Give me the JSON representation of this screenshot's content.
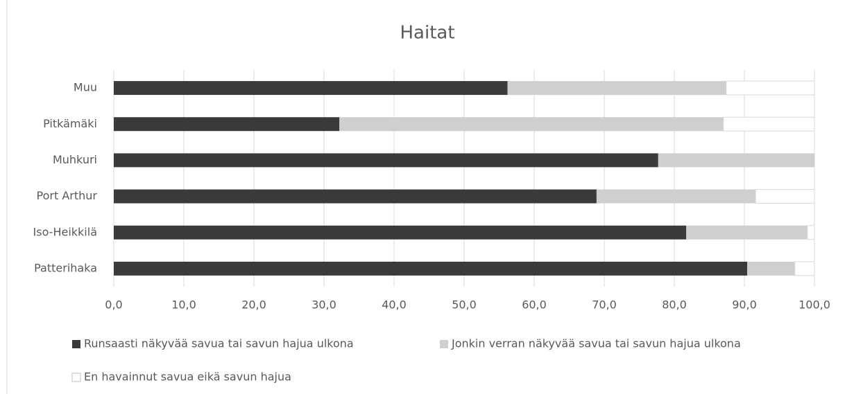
{
  "chart_data": {
    "type": "stacked-bar-horizontal",
    "title": "Haitat",
    "categories": [
      "Muu",
      "Pitkämäki",
      "Muhkuri",
      "Port Arthur",
      "Iso-Heikkilä",
      "Patterihaka"
    ],
    "series": [
      {
        "name": "Runsaasti näkyvää savua tai savun hajua ulkona",
        "color": "#3a3a3a",
        "values": [
          56.2,
          32.2,
          77.7,
          68.9,
          81.7,
          90.4
        ]
      },
      {
        "name": "Jonkin verran näkyvää savua tai savun hajua ulkona",
        "color": "#d0cece",
        "values": [
          31.2,
          54.8,
          22.3,
          22.7,
          17.3,
          6.8
        ]
      },
      {
        "name": "En havainnut savua eikä savun hajua",
        "color": "#ffffff",
        "values": [
          12.6,
          13.0,
          0,
          8.4,
          1.0,
          2.8
        ]
      }
    ],
    "xlim": [
      0,
      100
    ],
    "xticks": [
      {
        "value": 0,
        "label": "0,0"
      },
      {
        "value": 10,
        "label": "10,0"
      },
      {
        "value": 20,
        "label": "20,0"
      },
      {
        "value": 30,
        "label": "30,0"
      },
      {
        "value": 40,
        "label": "40,0"
      },
      {
        "value": 50,
        "label": "50,0"
      },
      {
        "value": 60,
        "label": "60,0"
      },
      {
        "value": 70,
        "label": "70,0"
      },
      {
        "value": 80,
        "label": "80,0"
      },
      {
        "value": 90,
        "label": "90,0"
      },
      {
        "value": 100,
        "label": "100,0"
      }
    ],
    "grid": true,
    "legend": "bottom"
  }
}
